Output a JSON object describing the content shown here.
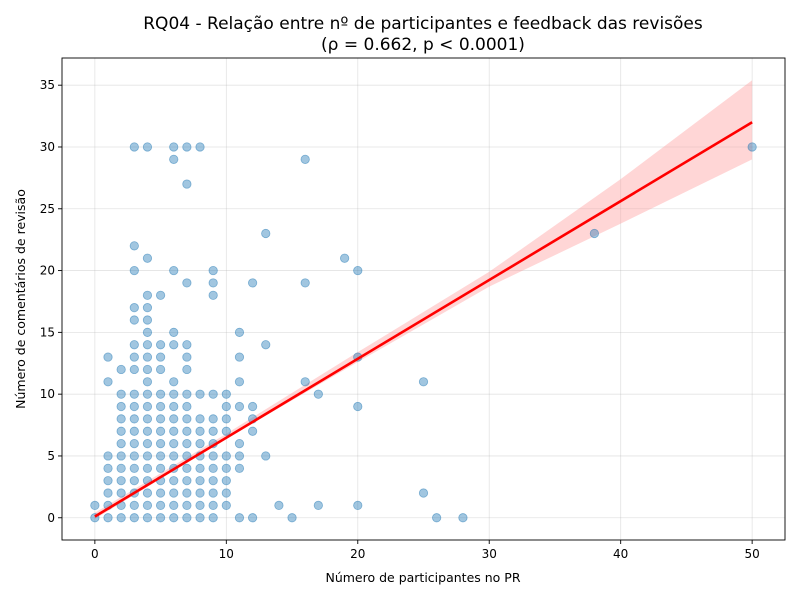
{
  "chart_data": {
    "type": "scatter",
    "title_line1": "RQ04 - Relação entre nº de participantes e feedback das revisões",
    "title_line2": "(ρ = 0.662, p < 0.0001)",
    "xlabel": "Número de participantes no PR",
    "ylabel": "Número de comentários de revisão",
    "xlim": [
      -2.5,
      52.5
    ],
    "ylim": [
      -1.8,
      37.2
    ],
    "xticks": [
      0,
      10,
      20,
      30,
      40,
      50
    ],
    "yticks": [
      0,
      5,
      10,
      15,
      20,
      25,
      30,
      35
    ],
    "grid": true,
    "colors": {
      "points": "#1f77b4",
      "regression_line": "#ff0000",
      "confidence_band": "#ff9999"
    },
    "regression": {
      "line": [
        [
          0,
          0.1
        ],
        [
          50,
          32.0
        ]
      ],
      "confidence_band": {
        "x": [
          0,
          10,
          20,
          30,
          40,
          50
        ],
        "lower": [
          -0.1,
          6.4,
          12.6,
          18.7,
          23.8,
          29.0
        ],
        "upper": [
          0.4,
          6.8,
          13.4,
          19.9,
          27.4,
          35.4
        ]
      }
    },
    "points": [
      [
        0,
        0
      ],
      [
        0,
        1
      ],
      [
        1,
        0
      ],
      [
        1,
        1
      ],
      [
        1,
        2
      ],
      [
        1,
        3
      ],
      [
        1,
        4
      ],
      [
        1,
        5
      ],
      [
        1,
        11
      ],
      [
        1,
        13
      ],
      [
        2,
        0
      ],
      [
        2,
        1
      ],
      [
        2,
        2
      ],
      [
        2,
        3
      ],
      [
        2,
        4
      ],
      [
        2,
        5
      ],
      [
        2,
        6
      ],
      [
        2,
        7
      ],
      [
        2,
        8
      ],
      [
        2,
        9
      ],
      [
        2,
        10
      ],
      [
        2,
        12
      ],
      [
        3,
        0
      ],
      [
        3,
        1
      ],
      [
        3,
        2
      ],
      [
        3,
        3
      ],
      [
        3,
        4
      ],
      [
        3,
        5
      ],
      [
        3,
        6
      ],
      [
        3,
        7
      ],
      [
        3,
        8
      ],
      [
        3,
        9
      ],
      [
        3,
        10
      ],
      [
        3,
        12
      ],
      [
        3,
        13
      ],
      [
        3,
        14
      ],
      [
        3,
        16
      ],
      [
        3,
        17
      ],
      [
        3,
        20
      ],
      [
        3,
        22
      ],
      [
        3,
        30
      ],
      [
        4,
        0
      ],
      [
        4,
        1
      ],
      [
        4,
        2
      ],
      [
        4,
        3
      ],
      [
        4,
        4
      ],
      [
        4,
        5
      ],
      [
        4,
        6
      ],
      [
        4,
        7
      ],
      [
        4,
        8
      ],
      [
        4,
        9
      ],
      [
        4,
        10
      ],
      [
        4,
        11
      ],
      [
        4,
        12
      ],
      [
        4,
        13
      ],
      [
        4,
        14
      ],
      [
        4,
        15
      ],
      [
        4,
        16
      ],
      [
        4,
        17
      ],
      [
        4,
        18
      ],
      [
        4,
        21
      ],
      [
        4,
        30
      ],
      [
        5,
        0
      ],
      [
        5,
        1
      ],
      [
        5,
        2
      ],
      [
        5,
        3
      ],
      [
        5,
        4
      ],
      [
        5,
        5
      ],
      [
        5,
        6
      ],
      [
        5,
        7
      ],
      [
        5,
        8
      ],
      [
        5,
        9
      ],
      [
        5,
        10
      ],
      [
        5,
        12
      ],
      [
        5,
        13
      ],
      [
        5,
        14
      ],
      [
        5,
        18
      ],
      [
        6,
        0
      ],
      [
        6,
        1
      ],
      [
        6,
        2
      ],
      [
        6,
        3
      ],
      [
        6,
        4
      ],
      [
        6,
        5
      ],
      [
        6,
        6
      ],
      [
        6,
        7
      ],
      [
        6,
        8
      ],
      [
        6,
        9
      ],
      [
        6,
        10
      ],
      [
        6,
        11
      ],
      [
        6,
        14
      ],
      [
        6,
        15
      ],
      [
        6,
        20
      ],
      [
        6,
        29
      ],
      [
        6,
        30
      ],
      [
        7,
        0
      ],
      [
        7,
        1
      ],
      [
        7,
        2
      ],
      [
        7,
        3
      ],
      [
        7,
        4
      ],
      [
        7,
        5
      ],
      [
        7,
        6
      ],
      [
        7,
        7
      ],
      [
        7,
        8
      ],
      [
        7,
        9
      ],
      [
        7,
        10
      ],
      [
        7,
        12
      ],
      [
        7,
        13
      ],
      [
        7,
        14
      ],
      [
        7,
        19
      ],
      [
        7,
        27
      ],
      [
        7,
        30
      ],
      [
        8,
        0
      ],
      [
        8,
        1
      ],
      [
        8,
        2
      ],
      [
        8,
        3
      ],
      [
        8,
        4
      ],
      [
        8,
        5
      ],
      [
        8,
        6
      ],
      [
        8,
        7
      ],
      [
        8,
        8
      ],
      [
        8,
        10
      ],
      [
        8,
        30
      ],
      [
        9,
        0
      ],
      [
        9,
        1
      ],
      [
        9,
        2
      ],
      [
        9,
        3
      ],
      [
        9,
        4
      ],
      [
        9,
        5
      ],
      [
        9,
        6
      ],
      [
        9,
        7
      ],
      [
        9,
        8
      ],
      [
        9,
        10
      ],
      [
        9,
        18
      ],
      [
        9,
        19
      ],
      [
        9,
        20
      ],
      [
        10,
        1
      ],
      [
        10,
        2
      ],
      [
        10,
        3
      ],
      [
        10,
        4
      ],
      [
        10,
        5
      ],
      [
        10,
        7
      ],
      [
        10,
        8
      ],
      [
        10,
        9
      ],
      [
        10,
        10
      ],
      [
        11,
        0
      ],
      [
        11,
        4
      ],
      [
        11,
        5
      ],
      [
        11,
        6
      ],
      [
        11,
        9
      ],
      [
        11,
        11
      ],
      [
        11,
        13
      ],
      [
        11,
        15
      ],
      [
        12,
        0
      ],
      [
        12,
        7
      ],
      [
        12,
        8
      ],
      [
        12,
        9
      ],
      [
        12,
        19
      ],
      [
        13,
        5
      ],
      [
        13,
        14
      ],
      [
        13,
        23
      ],
      [
        14,
        1
      ],
      [
        15,
        0
      ],
      [
        16,
        11
      ],
      [
        16,
        19
      ],
      [
        16,
        29
      ],
      [
        17,
        1
      ],
      [
        17,
        10
      ],
      [
        19,
        21
      ],
      [
        20,
        1
      ],
      [
        20,
        9
      ],
      [
        20,
        13
      ],
      [
        20,
        20
      ],
      [
        25,
        2
      ],
      [
        25,
        11
      ],
      [
        26,
        0
      ],
      [
        28,
        0
      ],
      [
        38,
        23
      ],
      [
        50,
        30
      ]
    ]
  }
}
